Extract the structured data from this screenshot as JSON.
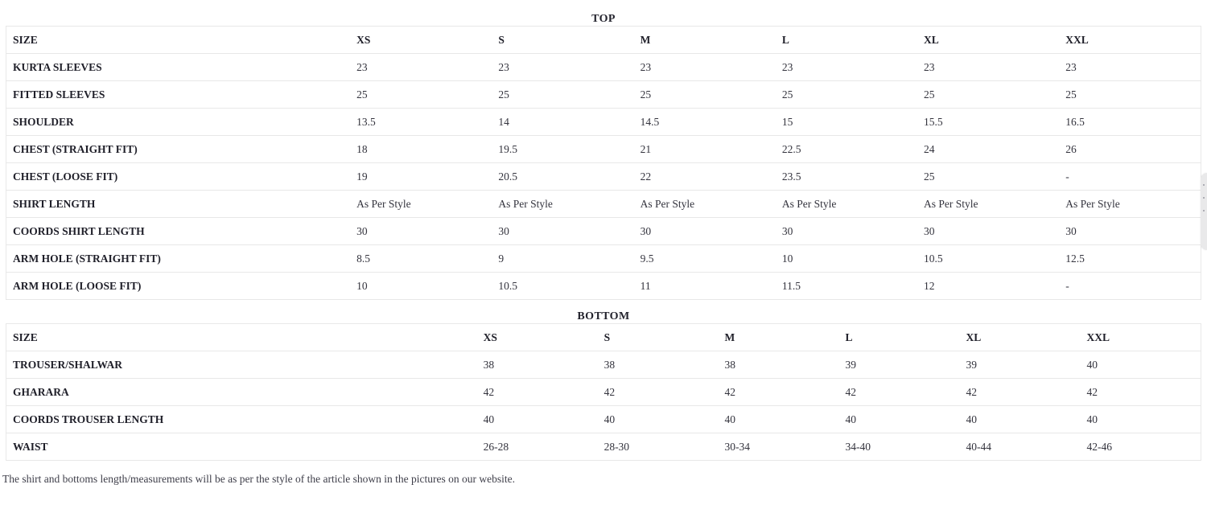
{
  "top_section": {
    "title": "TOP",
    "columns": [
      "SIZE",
      "XS",
      "S",
      "M",
      "L",
      "XL",
      "XXL"
    ],
    "rows": [
      {
        "label": "KURTA SLEEVES",
        "values": [
          "23",
          "23",
          "23",
          "23",
          "23",
          "23"
        ]
      },
      {
        "label": "FITTED SLEEVES",
        "values": [
          "25",
          "25",
          "25",
          "25",
          "25",
          "25"
        ]
      },
      {
        "label": "SHOULDER",
        "values": [
          "13.5",
          "14",
          "14.5",
          "15",
          "15.5",
          "16.5"
        ]
      },
      {
        "label": "CHEST (STRAIGHT FIT)",
        "values": [
          "18",
          "19.5",
          "21",
          "22.5",
          "24",
          "26"
        ]
      },
      {
        "label": "CHEST (LOOSE FIT)",
        "values": [
          "19",
          "20.5",
          "22",
          "23.5",
          "25",
          "-"
        ]
      },
      {
        "label": "SHIRT LENGTH",
        "values": [
          "As Per Style",
          "As Per Style",
          "As Per Style",
          "As Per Style",
          "As Per Style",
          "As Per Style"
        ]
      },
      {
        "label": "COORDS SHIRT LENGTH",
        "values": [
          "30",
          "30",
          "30",
          "30",
          "30",
          "30"
        ]
      },
      {
        "label": "ARM HOLE (STRAIGHT FIT)",
        "values": [
          "8.5",
          "9",
          "9.5",
          "10",
          "10.5",
          "12.5"
        ]
      },
      {
        "label": "ARM HOLE (LOOSE FIT)",
        "values": [
          "10",
          "10.5",
          "11",
          "11.5",
          "12",
          "-"
        ]
      }
    ]
  },
  "bottom_section": {
    "title": "BOTTOM",
    "columns": [
      "SIZE",
      "XS",
      "S",
      "M",
      "L",
      "XL",
      "XXL"
    ],
    "rows": [
      {
        "label": "TROUSER/SHALWAR",
        "values": [
          "38",
          "38",
          "38",
          "39",
          "39",
          "40"
        ]
      },
      {
        "label": "GHARARA",
        "values": [
          "42",
          "42",
          "42",
          "42",
          "42",
          "42"
        ]
      },
      {
        "label": "COORDS TROUSER LENGTH",
        "values": [
          "40",
          "40",
          "40",
          "40",
          "40",
          "40"
        ]
      },
      {
        "label": "WAIST",
        "values": [
          "26-28",
          "28-30",
          "30-34",
          "34-40",
          "40-44",
          "42-46"
        ]
      }
    ]
  },
  "footnote": "The shirt and bottoms length/measurements will be as per the style of the article shown in the pictures on our website.",
  "layout_hints": {
    "top_label_col_width": "28.8%",
    "bottom_label_col_width": "39.4%"
  },
  "colors": {
    "text_dark": "#1f1f29",
    "text_value": "#33333d",
    "border": "#e8e8e8",
    "footnote_text": "#3e3e49",
    "side_widget": "#e9e9ea"
  }
}
